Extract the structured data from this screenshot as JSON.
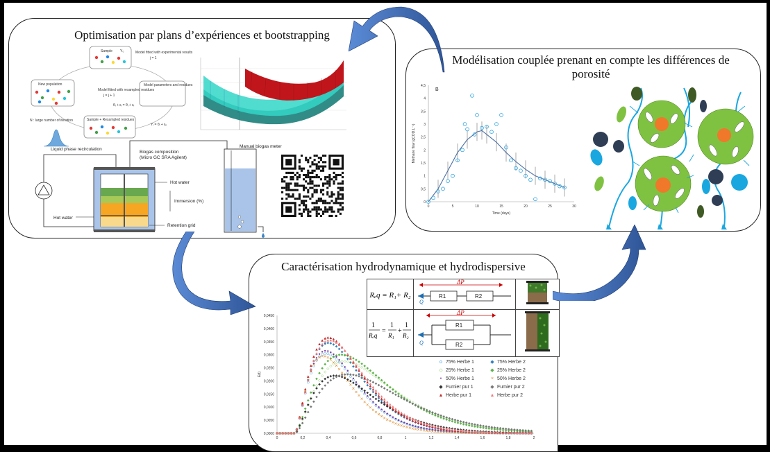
{
  "panels": {
    "optim": {
      "title": "Optimisation par plans d’expériences et bootstrapping"
    },
    "model": {
      "title": "Modélisation couplée prenant en compte les différences de porosité"
    },
    "hydro": {
      "title": "Caractérisation hydrodynamique et hydrodispersive"
    }
  },
  "bootstrap": {
    "sample_label": "Sample",
    "sample_sub": "Y₀",
    "new_population": "New population",
    "model_fitted_exp": "Model fitted with experimental results",
    "model_params": "Model parameters and residues",
    "model_fitted_res": "Model fitted with resampled residues",
    "resampled": "Sample + Resampled residues",
    "n_iter": "N : large number of iteration",
    "eq1": "θᵢ + εᵢ  =  θᵢ + εᵢ",
    "eq2": "Yᵢ = θᵢ + εᵢᵢ",
    "j_label": "j = 1",
    "j_label2": "j = j + 1"
  },
  "reactor": {
    "liquid_recirc": "Liquid phase recirculation",
    "biogas_comp": "Biogas composition",
    "biogas_comp_sub": "(Micro GC SRA Agilent)",
    "manual_meter": "Manual biogas meter",
    "hot_water_in": "Hot water",
    "hot_water_out": "Hot water",
    "immersion": "Immersion (%)",
    "retention": "Retention grid"
  },
  "methane": {
    "panel_letter": "B",
    "ylabel": "Methane flow (gCOD.L⁻¹)",
    "xlabel": "Time (days)",
    "yticks": [
      "0",
      "0,5",
      "1",
      "1,5",
      "2",
      "2,5",
      "3",
      "3,5",
      "4",
      "4,5"
    ],
    "xticks": [
      "0",
      "5",
      "10",
      "15",
      "20",
      "25",
      "30"
    ]
  },
  "chart_data": [
    {
      "type": "scatter",
      "title": "",
      "xlabel": "Time (days)",
      "ylabel": "Methane flow (gCOD.L⁻¹)",
      "xlim": [
        0,
        30
      ],
      "ylim": [
        0,
        4.5
      ],
      "series": [
        {
          "values": [
            [
              0,
              0
            ],
            [
              1,
              0.15
            ],
            [
              2,
              0.4
            ],
            [
              3,
              0.5
            ],
            [
              4,
              0.8
            ],
            [
              5,
              1.0
            ],
            [
              6,
              1.6
            ],
            [
              7,
              2.0
            ],
            [
              7.5,
              3.0
            ],
            [
              8,
              2.8
            ],
            [
              9,
              4.1
            ],
            [
              9.5,
              2.6
            ],
            [
              10,
              3.35
            ],
            [
              11,
              2.85
            ],
            [
              12,
              2.9
            ],
            [
              13,
              2.7
            ],
            [
              14,
              3.0
            ],
            [
              15,
              3.35
            ],
            [
              16,
              2.1
            ],
            [
              17,
              1.6
            ],
            [
              18,
              1.3
            ],
            [
              19,
              1.2
            ],
            [
              20,
              1.0
            ],
            [
              21,
              0.85
            ],
            [
              22,
              0.1
            ],
            [
              23,
              0.9
            ],
            [
              24,
              0.85
            ],
            [
              25,
              0.8
            ],
            [
              26,
              0.7
            ],
            [
              27,
              0.6
            ],
            [
              28,
              0.55
            ]
          ]
        }
      ]
    },
    {
      "type": "line",
      "title": "",
      "xlabel": "",
      "ylabel": "",
      "xlim": [
        0,
        30
      ],
      "ylim": [
        0,
        4.5
      ],
      "series": [
        {
          "values": [
            [
              0,
              0
            ],
            [
              2,
              0.5
            ],
            [
              4,
              1.2
            ],
            [
              6,
              1.9
            ],
            [
              8,
              2.4
            ],
            [
              10,
              2.7
            ],
            [
              11,
              2.75
            ],
            [
              12,
              2.6
            ],
            [
              14,
              2.3
            ],
            [
              16,
              1.9
            ],
            [
              18,
              1.55
            ],
            [
              20,
              1.25
            ],
            [
              22,
              1.0
            ],
            [
              24,
              0.85
            ],
            [
              26,
              0.7
            ],
            [
              28,
              0.55
            ]
          ]
        }
      ]
    },
    {
      "type": "scatter",
      "title": "",
      "xlabel": "",
      "ylabel": "",
      "ylim": [
        0,
        0.045
      ],
      "yticks": [
        "0,0000",
        "0,0050",
        "0,0100",
        "0,0150",
        "0,0200",
        "0,0250",
        "0,0300",
        "0,0350",
        "0,0400",
        "0,0450"
      ],
      "xticks": [
        "0",
        "0,2",
        "0,4",
        "0,6",
        "0,8",
        "1",
        "1,2",
        "1,4",
        "1,6",
        "1,8",
        "2"
      ],
      "ylabel_short": "E(t)",
      "series": [
        {
          "name": "75% Herbe 1",
          "marker": "o",
          "color": "#4aa3df",
          "peak_x": 0.38,
          "peak_y": 0.0305
        },
        {
          "name": "75% Herbe 2",
          "marker": "◆",
          "color": "#2f7fbf",
          "peak_x": 0.4,
          "peak_y": 0.0345
        },
        {
          "name": "25% Herbe 1",
          "marker": "◇",
          "color": "#8fcf6a",
          "peak_x": 0.52,
          "peak_y": 0.0275
        },
        {
          "name": "25% Herbe 2",
          "marker": "◆",
          "color": "#5db34a",
          "peak_x": 0.5,
          "peak_y": 0.03
        },
        {
          "name": "50% Herbe 1",
          "marker": "•",
          "color": "#7b3aa6",
          "peak_x": 0.38,
          "peak_y": 0.0315
        },
        {
          "name": "50% Herbe 2",
          "marker": "×",
          "color": "#e08a2b",
          "peak_x": 0.36,
          "peak_y": 0.0295
        },
        {
          "name": "Fumier pur 1",
          "marker": "◆",
          "color": "#333333",
          "peak_x": 0.45,
          "peak_y": 0.022
        },
        {
          "name": "Fumier pur 2",
          "marker": "◆",
          "color": "#777777",
          "peak_x": 0.55,
          "peak_y": 0.0225
        },
        {
          "name": "Herbe pur 1",
          "marker": "▲",
          "color": "#c62828",
          "peak_x": 0.4,
          "peak_y": 0.0365
        },
        {
          "name": "Herbe pur 2",
          "marker": "▲",
          "color": "#ef7a7a",
          "peak_x": 0.41,
          "peak_y": 0.0355
        }
      ]
    }
  ],
  "resist": {
    "dp": "ΔP",
    "q": "Q",
    "r1": "R1",
    "r2": "R2",
    "series_eq": "Rₑq = R₁+ R₂",
    "parallel_lhs": "1",
    "parallel_eq_den": "Rₑq",
    "parallel_rhs1": "1",
    "parallel_rhs1_den": "R₁",
    "parallel_rhs2": "1",
    "parallel_rhs2_den": "R₂",
    "eq": "=",
    "plus": "+"
  },
  "colors": {
    "arrow": "#2f5597",
    "arrow_light": "#5b8bd6",
    "grass": "#7fc241",
    "orange": "#f0782a",
    "blue": "#1aa7e0",
    "navy": "#2f3e55",
    "darkgreen": "#3f5a24"
  }
}
